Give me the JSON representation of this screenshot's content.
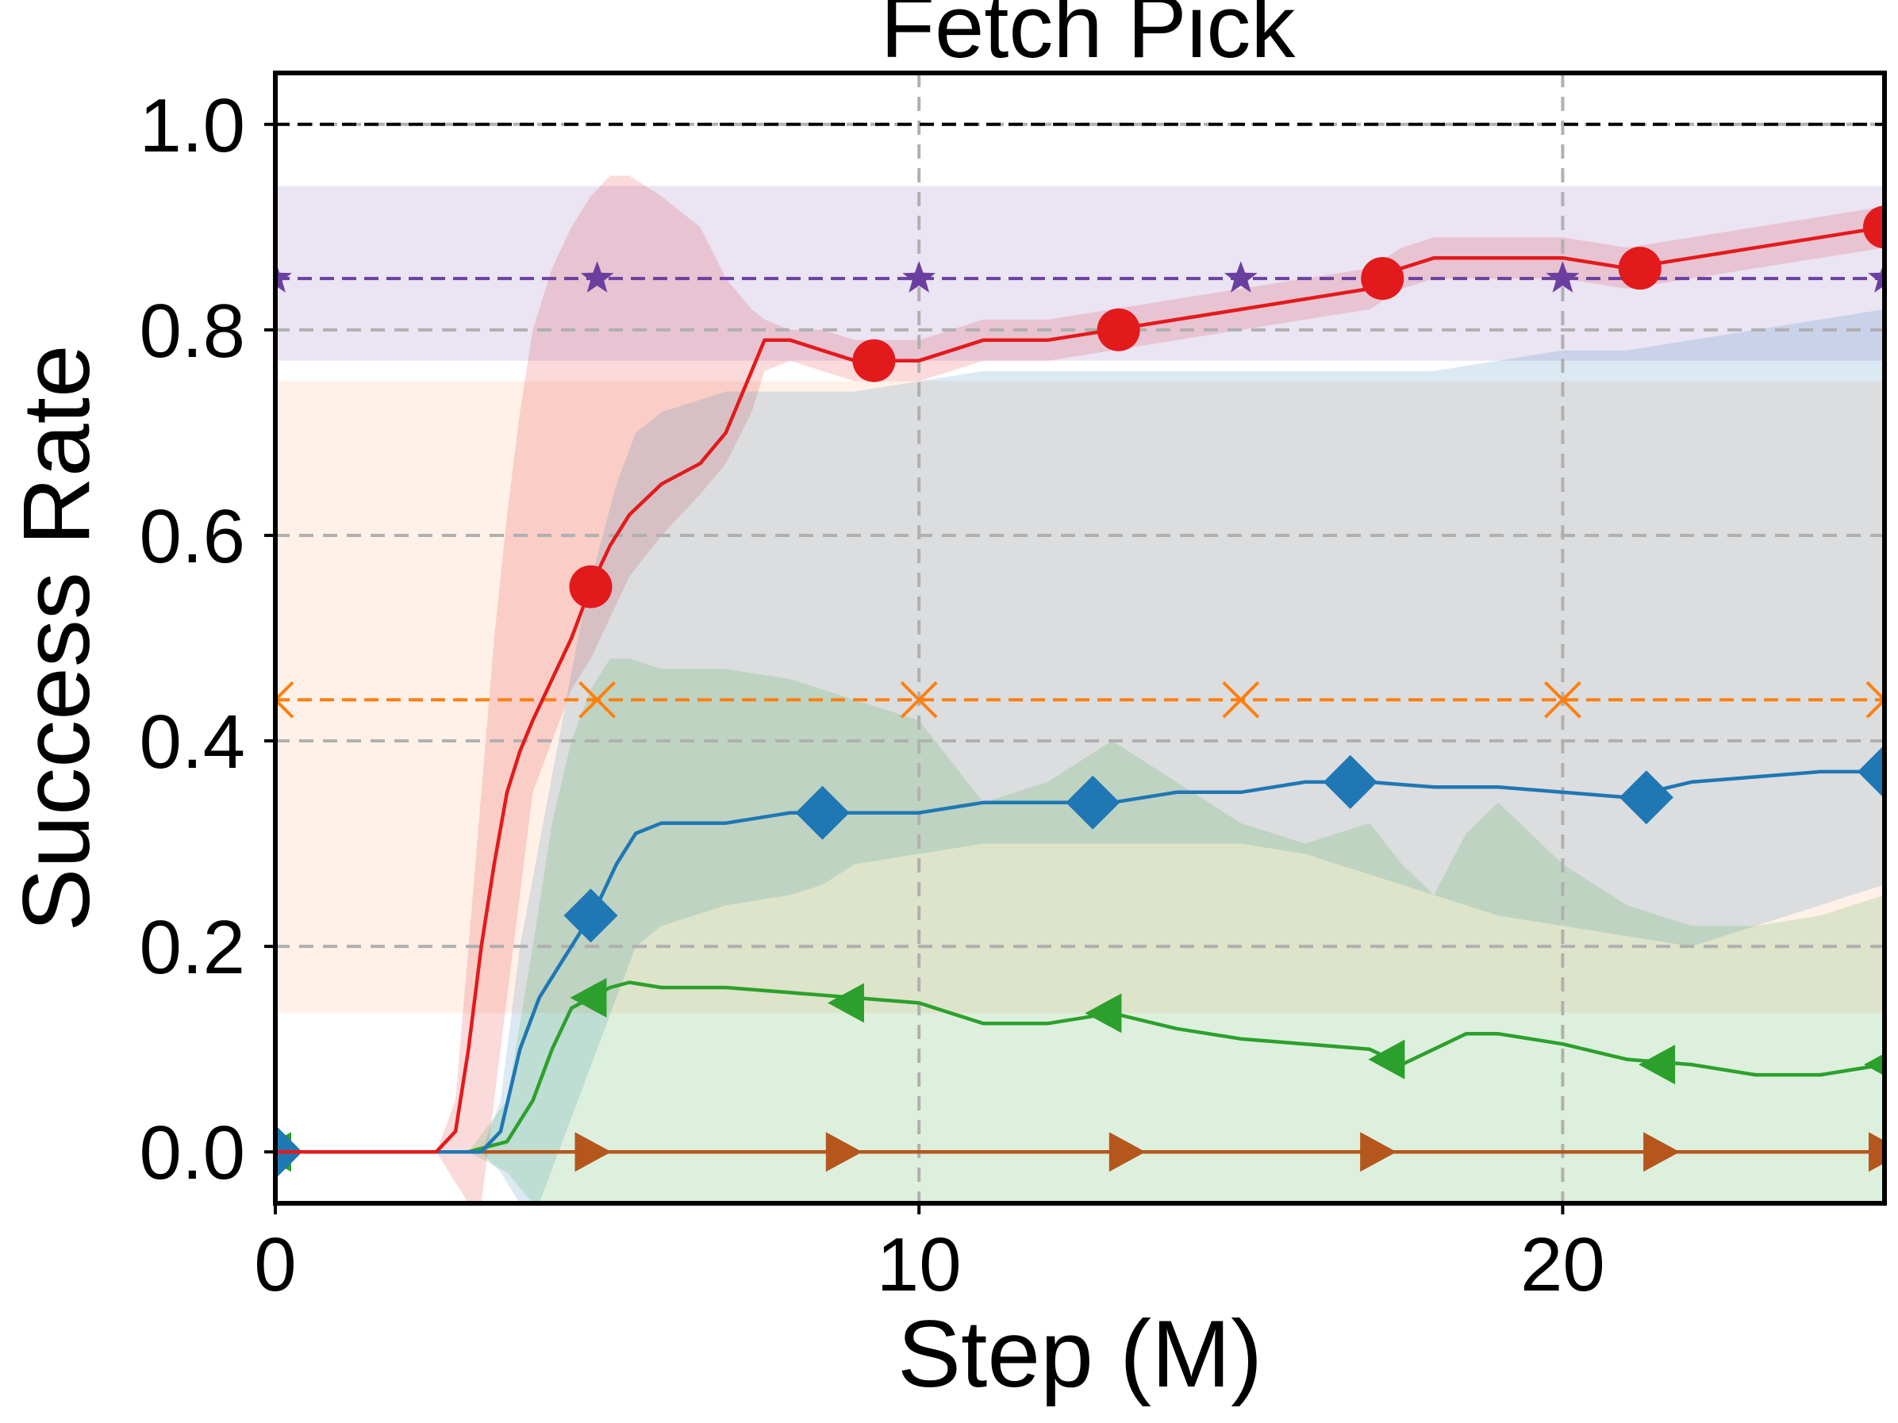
{
  "chart_data": {
    "type": "line",
    "title": "Fetch Pick",
    "xlabel": "Step (M)",
    "ylabel": "Success Rate",
    "xlim": [
      0,
      25
    ],
    "ylim": [
      -0.05,
      1.05
    ],
    "xticks": [
      0,
      10,
      20
    ],
    "xtick_labels": [
      "0",
      "10",
      "20"
    ],
    "yticks": [
      0.0,
      0.2,
      0.4,
      0.6,
      0.8,
      1.0
    ],
    "ytick_labels": [
      "0.0",
      "0.2",
      "0.4",
      "0.6",
      "0.8",
      "1.0"
    ],
    "grid": true,
    "reference_line": 1.0,
    "baselines": [
      {
        "value": 0.85,
        "low": 0.77,
        "high": 0.94,
        "color": "#6b3fa0",
        "band_color": "#b8a7d8",
        "marker": "star",
        "marker_x": [
          0,
          5,
          10,
          15,
          20,
          25
        ]
      },
      {
        "value": 0.44,
        "low": 0.135,
        "high": 0.75,
        "color": "#ff7f0e",
        "band_color": "#ffd2b0",
        "marker": "x",
        "marker_x": [
          0,
          5,
          10,
          15,
          20,
          25
        ]
      }
    ],
    "series": [
      {
        "color": "#e31a1c",
        "marker": "circle",
        "x": [
          0,
          2.5,
          2.8,
          3.0,
          3.2,
          3.4,
          3.6,
          3.8,
          4.0,
          4.3,
          4.6,
          4.9,
          5.2,
          5.5,
          6.0,
          6.6,
          7.0,
          7.4,
          7.6,
          8.0,
          8.5,
          9.0,
          9.5,
          10.0,
          10.5,
          11.0,
          12.0,
          13.0,
          14.0,
          15.0,
          16.0,
          17.0,
          17.5,
          18.0,
          19.0,
          20.0,
          21.0,
          22.0,
          23.0,
          24.0,
          25.0
        ],
        "y": [
          0,
          0,
          0.02,
          0.1,
          0.2,
          0.28,
          0.35,
          0.39,
          0.42,
          0.46,
          0.5,
          0.55,
          0.59,
          0.62,
          0.65,
          0.67,
          0.7,
          0.76,
          0.79,
          0.79,
          0.78,
          0.77,
          0.77,
          0.77,
          0.78,
          0.79,
          0.79,
          0.8,
          0.81,
          0.82,
          0.83,
          0.84,
          0.86,
          0.87,
          0.87,
          0.87,
          0.86,
          0.87,
          0.88,
          0.89,
          0.9
        ],
        "lower": [
          0,
          0,
          -0.03,
          -0.05,
          -0.05,
          0.05,
          0.15,
          0.25,
          0.35,
          0.4,
          0.45,
          0.48,
          0.52,
          0.56,
          0.6,
          0.64,
          0.67,
          0.72,
          0.76,
          0.77,
          0.76,
          0.75,
          0.75,
          0.75,
          0.76,
          0.77,
          0.77,
          0.78,
          0.79,
          0.8,
          0.81,
          0.82,
          0.84,
          0.85,
          0.85,
          0.85,
          0.84,
          0.85,
          0.86,
          0.87,
          0.88
        ],
        "upper": [
          0,
          0,
          0.05,
          0.2,
          0.35,
          0.5,
          0.62,
          0.72,
          0.8,
          0.86,
          0.9,
          0.93,
          0.95,
          0.95,
          0.93,
          0.9,
          0.85,
          0.82,
          0.81,
          0.8,
          0.8,
          0.79,
          0.79,
          0.79,
          0.8,
          0.81,
          0.81,
          0.82,
          0.83,
          0.84,
          0.85,
          0.86,
          0.88,
          0.89,
          0.89,
          0.89,
          0.88,
          0.89,
          0.9,
          0.91,
          0.92
        ],
        "marker_x": [
          4.9,
          9.3,
          13.1,
          17.2,
          21.2,
          25.0
        ],
        "marker_y": [
          0.55,
          0.77,
          0.8,
          0.85,
          0.86,
          0.9
        ]
      },
      {
        "color": "#1f77b4",
        "marker": "diamond",
        "x": [
          0,
          3.2,
          3.5,
          3.8,
          4.1,
          4.4,
          4.7,
          5.0,
          5.3,
          5.6,
          6.0,
          7.0,
          8.0,
          8.5,
          9.0,
          10.0,
          11.0,
          12.0,
          13.0,
          14.0,
          15.0,
          16.0,
          17.0,
          18.0,
          19.0,
          20.0,
          21.0,
          22.0,
          23.0,
          24.0,
          25.0
        ],
        "y": [
          0,
          0,
          0.02,
          0.1,
          0.15,
          0.18,
          0.21,
          0.24,
          0.28,
          0.31,
          0.32,
          0.32,
          0.33,
          0.33,
          0.33,
          0.33,
          0.34,
          0.34,
          0.34,
          0.35,
          0.35,
          0.36,
          0.36,
          0.355,
          0.355,
          0.35,
          0.345,
          0.36,
          0.365,
          0.37,
          0.37
        ],
        "lower": [
          0,
          0,
          -0.02,
          -0.05,
          -0.05,
          0.0,
          0.05,
          0.1,
          0.15,
          0.2,
          0.22,
          0.24,
          0.25,
          0.26,
          0.28,
          0.29,
          0.3,
          0.3,
          0.3,
          0.3,
          0.3,
          0.29,
          0.27,
          0.25,
          0.23,
          0.22,
          0.21,
          0.2,
          0.22,
          0.24,
          0.26
        ],
        "upper": [
          0,
          0,
          0.05,
          0.2,
          0.3,
          0.4,
          0.5,
          0.58,
          0.65,
          0.7,
          0.72,
          0.74,
          0.74,
          0.74,
          0.74,
          0.75,
          0.76,
          0.76,
          0.76,
          0.76,
          0.76,
          0.76,
          0.76,
          0.76,
          0.77,
          0.78,
          0.78,
          0.79,
          0.8,
          0.81,
          0.82
        ],
        "marker_x": [
          0,
          4.9,
          8.5,
          12.7,
          16.7,
          21.3,
          25.0
        ],
        "marker_y": [
          0,
          0.23,
          0.33,
          0.34,
          0.36,
          0.345,
          0.37
        ]
      },
      {
        "color": "#2ca02c",
        "marker": "triangle-left",
        "x": [
          0,
          3.0,
          3.6,
          4.0,
          4.3,
          4.6,
          4.9,
          5.2,
          5.5,
          6.0,
          7.0,
          8.0,
          9.0,
          10.0,
          11.0,
          12.0,
          13.0,
          14.0,
          15.0,
          16.0,
          17.0,
          17.5,
          18.0,
          18.5,
          19.0,
          20.0,
          21.0,
          22.0,
          23.0,
          24.0,
          25.0
        ],
        "y": [
          0,
          0,
          0.01,
          0.05,
          0.1,
          0.14,
          0.15,
          0.16,
          0.165,
          0.16,
          0.16,
          0.155,
          0.15,
          0.145,
          0.125,
          0.125,
          0.135,
          0.12,
          0.11,
          0.105,
          0.1,
          0.085,
          0.1,
          0.115,
          0.115,
          0.105,
          0.09,
          0.085,
          0.075,
          0.075,
          0.085
        ],
        "lower": [
          0,
          0,
          -0.02,
          -0.05,
          -0.05,
          -0.05,
          -0.05,
          -0.05,
          -0.05,
          -0.05,
          -0.05,
          -0.05,
          -0.05,
          -0.05,
          -0.05,
          -0.05,
          -0.05,
          -0.05,
          -0.05,
          -0.05,
          -0.05,
          -0.05,
          -0.05,
          -0.05,
          -0.05,
          -0.05,
          -0.05,
          -0.05,
          -0.05,
          -0.05,
          -0.05
        ],
        "upper": [
          0,
          0,
          0.05,
          0.2,
          0.32,
          0.4,
          0.45,
          0.48,
          0.48,
          0.47,
          0.47,
          0.46,
          0.44,
          0.42,
          0.34,
          0.36,
          0.4,
          0.36,
          0.32,
          0.3,
          0.32,
          0.28,
          0.25,
          0.31,
          0.34,
          0.28,
          0.24,
          0.22,
          0.22,
          0.23,
          0.25
        ],
        "marker_x": [
          0,
          4.9,
          8.9,
          12.9,
          17.3,
          21.5,
          25.0
        ],
        "marker_y": [
          0,
          0.15,
          0.145,
          0.135,
          0.09,
          0.085,
          0.085
        ]
      },
      {
        "color": "#b5561d",
        "marker": "triangle-right",
        "x": [
          0,
          25
        ],
        "y": [
          0,
          0
        ],
        "marker_x": [
          0,
          4.9,
          8.8,
          13.2,
          17.1,
          21.5,
          25.0
        ],
        "marker_y": [
          0,
          0,
          0,
          0,
          0,
          0,
          0
        ]
      }
    ]
  }
}
